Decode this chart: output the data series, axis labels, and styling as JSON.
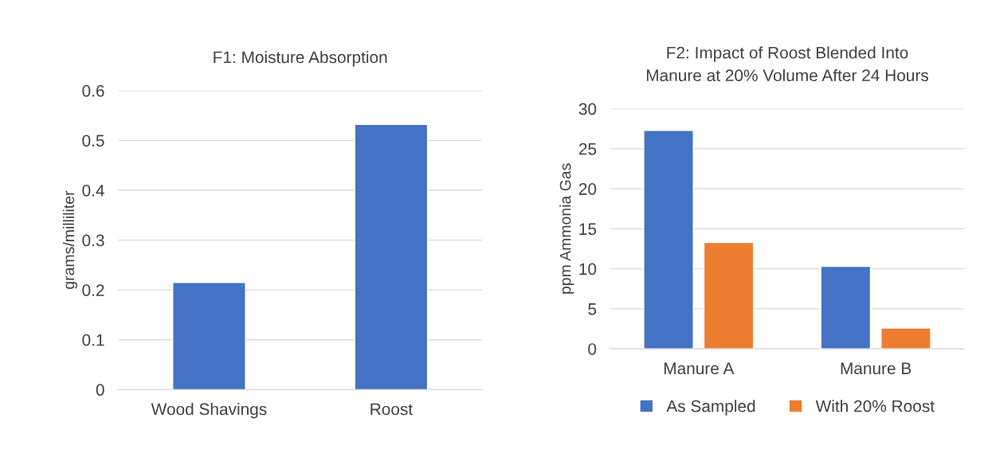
{
  "chart_data": [
    {
      "type": "bar",
      "title": "F1: Moisture Absorption",
      "ylabel": "grams/milliliter",
      "categories": [
        "Wood Shavings",
        "Roost"
      ],
      "values": [
        0.215,
        0.532
      ],
      "color": "#4472c4",
      "ylim": [
        0,
        0.6
      ],
      "yticks": [
        {
          "value": 0,
          "label": "0"
        },
        0.1,
        0.2,
        0.3,
        0.4,
        0.5,
        0.6
      ],
      "grid": "y",
      "legend": false
    },
    {
      "type": "bar",
      "title": "F2: Impact of Roost Blended Into\nManure at 20% Volume After 24 Hours",
      "ylabel": "ppm Ammonia Gas",
      "categories": [
        "Manure A",
        "Manure B"
      ],
      "series": [
        {
          "name": "As Sampled",
          "color": "#4472c4",
          "values": [
            27.3,
            10.3
          ]
        },
        {
          "name": "With 20% Roost",
          "color": "#ed7d31",
          "values": [
            13.3,
            2.6
          ]
        }
      ],
      "ylim": [
        0,
        30
      ],
      "yticks": [
        0,
        5,
        10,
        15,
        20,
        25,
        30
      ],
      "grid": "y",
      "legend": "bottom"
    }
  ]
}
